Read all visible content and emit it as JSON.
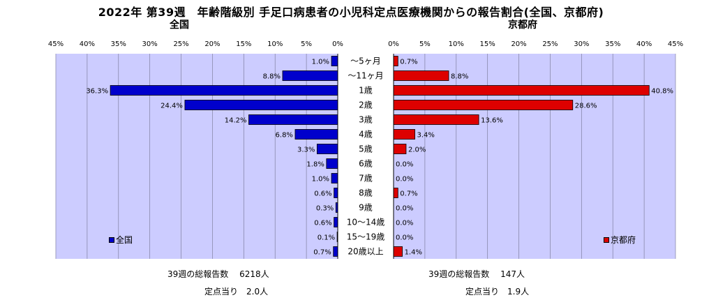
{
  "title": "2022年 第39週　年齢階級別 手足口病患者の小児科定点医療機関からの報告割合(全国、京都府)",
  "panels": {
    "left_title": "全国",
    "right_title": "京都府"
  },
  "colors": {
    "national": "#0000cc",
    "kyoto": "#dd0000",
    "plot_bg": "#ccccff"
  },
  "axis": {
    "left_ticks": [
      "45%",
      "40%",
      "35%",
      "30%",
      "25%",
      "20%",
      "15%",
      "10%",
      "5%",
      "0%"
    ],
    "right_ticks": [
      "0%",
      "5%",
      "10%",
      "15%",
      "20%",
      "25%",
      "30%",
      "35%",
      "40%",
      "45%"
    ]
  },
  "legend": {
    "national": "全国",
    "kyoto": "京都府"
  },
  "footer": {
    "national_total": "39週の総報告数　 6218人",
    "national_per_site": "定点当り　2.0人",
    "kyoto_total": "39週の総報告数　 147人",
    "kyoto_per_site": "定点当り　1.9人"
  },
  "chart_data": {
    "type": "bar",
    "orientation": "horizontal",
    "title": "2022年 第39週　年齢階級別 手足口病患者の小児科定点医療機関からの報告割合(全国、京都府)",
    "xlim": [
      0,
      45
    ],
    "categories": [
      "～5ヶ月",
      "～11ヶ月",
      "1歳",
      "2歳",
      "3歳",
      "4歳",
      "5歳",
      "6歳",
      "7歳",
      "8歳",
      "9歳",
      "10～14歳",
      "15～19歳",
      "20歳以上"
    ],
    "series": [
      {
        "name": "全国",
        "values": [
          1.0,
          8.8,
          36.3,
          24.4,
          14.2,
          6.8,
          3.3,
          1.8,
          1.0,
          0.6,
          0.3,
          0.6,
          0.1,
          0.7
        ],
        "labels": [
          "1.0%",
          "8.8%",
          "36.3%",
          "24.4%",
          "14.2%",
          "6.8%",
          "3.3%",
          "1.8%",
          "1.0%",
          "0.6%",
          "0.3%",
          "0.6%",
          "0.1%",
          "0.7%"
        ]
      },
      {
        "name": "京都府",
        "values": [
          0.7,
          8.8,
          40.8,
          28.6,
          13.6,
          3.4,
          2.0,
          0.0,
          0.0,
          0.7,
          0.0,
          0.0,
          0.0,
          1.4
        ],
        "labels": [
          "0.7%",
          "8.8%",
          "40.8%",
          "28.6%",
          "13.6%",
          "3.4%",
          "2.0%",
          "0.0%",
          "0.0%",
          "0.7%",
          "0.0%",
          "0.0%",
          "0.0%",
          "1.4%"
        ]
      }
    ],
    "grid": true,
    "legend_position": "bottom-left / bottom-right"
  }
}
